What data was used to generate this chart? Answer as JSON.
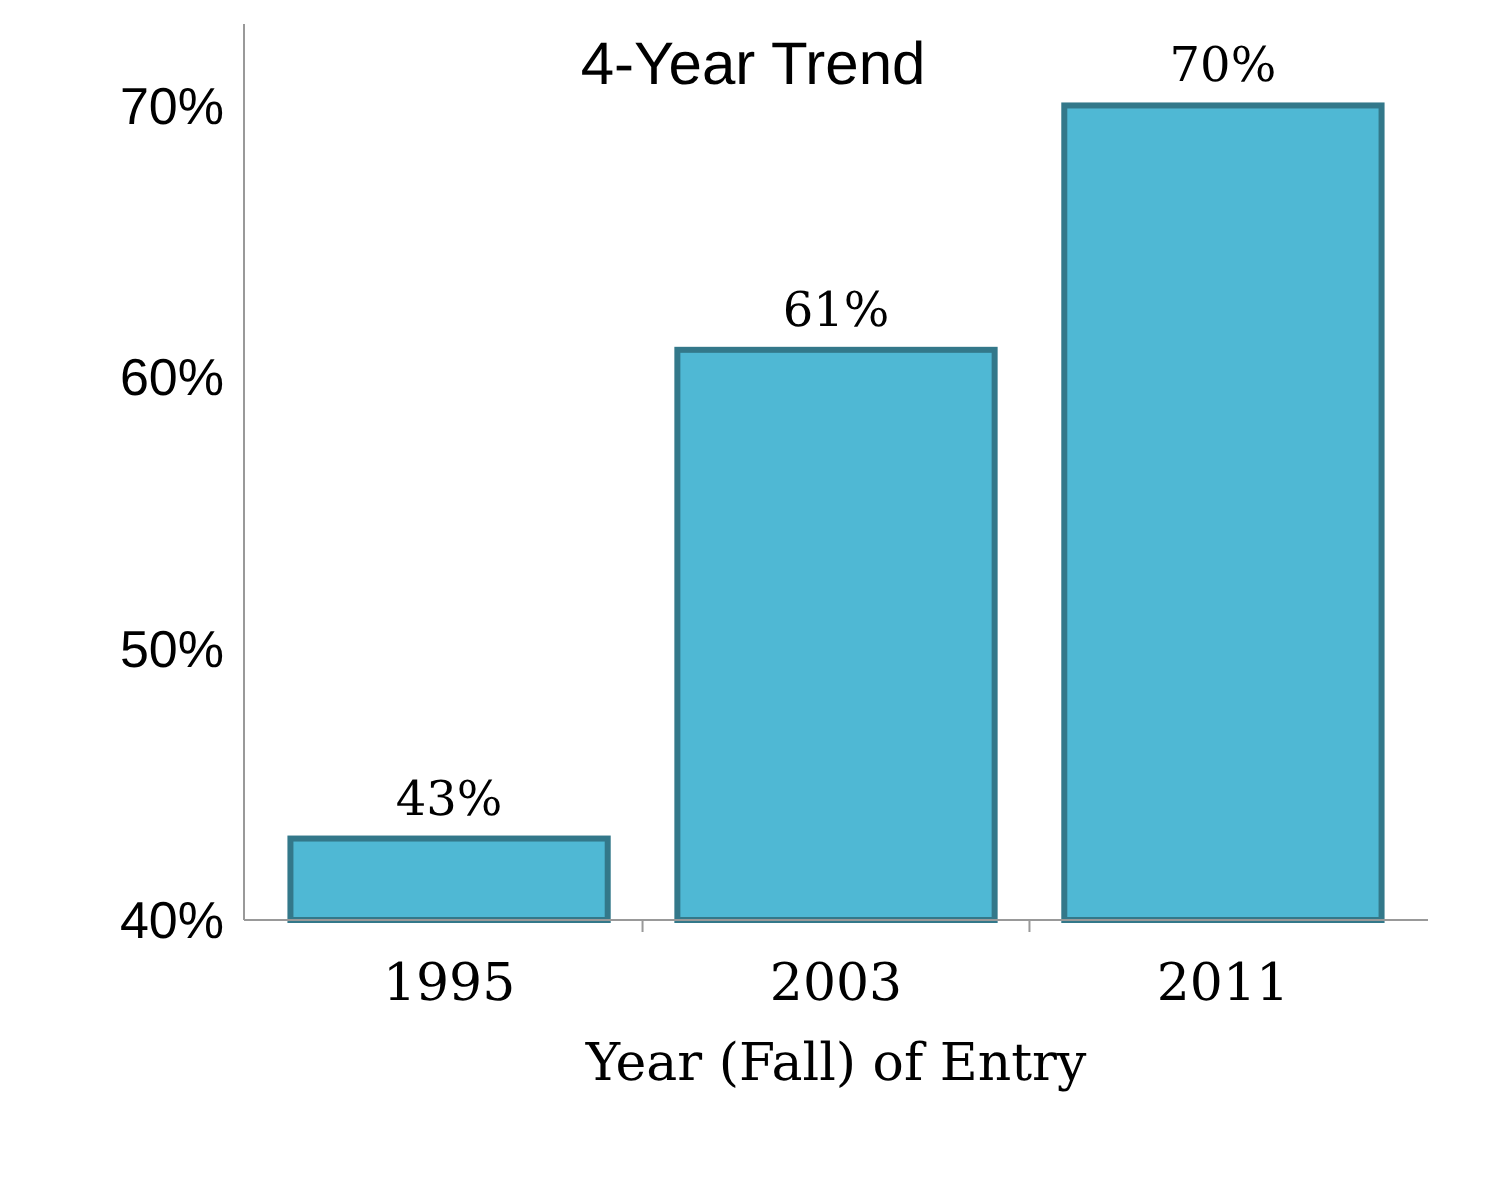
{
  "chart_data": {
    "type": "bar",
    "title": "4-Year Trend",
    "xlabel": "Year (Fall) of Entry",
    "categories": [
      "1995",
      "2003",
      "2011"
    ],
    "values": [
      43,
      61,
      70
    ],
    "color": "#4fb8d4",
    "ylim": [
      40,
      73
    ],
    "yticks": [
      {
        "value": 40,
        "label": "40%"
      },
      {
        "value": 50,
        "label": "50%"
      },
      {
        "value": 60,
        "label": "60%"
      },
      {
        "value": 70,
        "label": "70%"
      }
    ],
    "data_labels": true,
    "value_labels": [
      "43%",
      "61%",
      "70%"
    ]
  }
}
